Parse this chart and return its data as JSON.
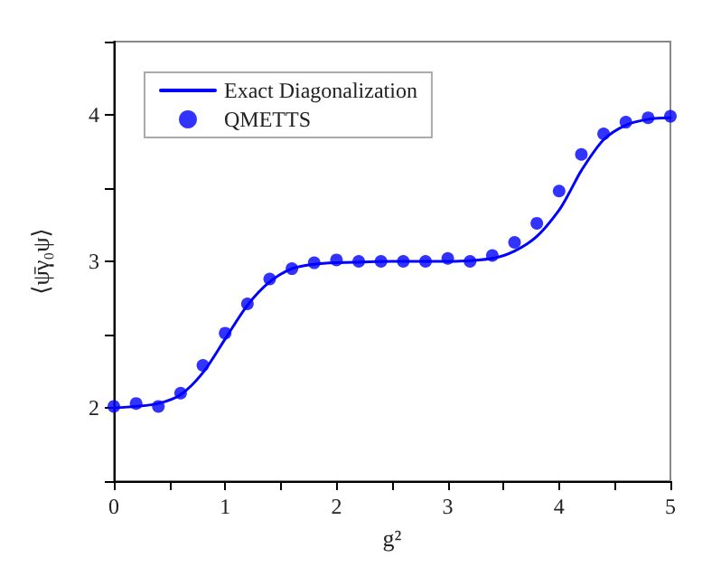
{
  "chart_data": {
    "type": "line",
    "xlabel": "g²",
    "ylabel": "⟨ψ̄γ₀ψ⟩",
    "xlim": [
      0,
      5
    ],
    "ylim": [
      1.5,
      4.5
    ],
    "xticks": [
      0,
      {
        "value": 0.5,
        "label": null
      },
      1,
      {
        "value": 1.5,
        "label": null
      },
      2,
      {
        "value": 2.5,
        "label": null
      },
      3,
      {
        "value": 3.5,
        "label": null
      },
      4,
      {
        "value": 4.5,
        "label": null
      },
      5
    ],
    "yticks": [
      {
        "value": 1.5,
        "label": null
      },
      2,
      {
        "value": 2.5,
        "label": null
      },
      3,
      {
        "value": 3.5,
        "label": null
      },
      4,
      {
        "value": 4.5,
        "label": null
      }
    ],
    "grid": false,
    "legend": "top left",
    "series": [
      {
        "name": "Exact Diagonalization",
        "color": "#0000ff",
        "marker": "none",
        "line_style": "solid",
        "x": [
          0,
          0.2,
          0.4,
          0.6,
          0.8,
          1.0,
          1.2,
          1.4,
          1.6,
          1.8,
          2.0,
          2.5,
          3.0,
          3.4,
          3.6,
          3.8,
          4.0,
          4.1,
          4.2,
          4.4,
          4.6,
          4.8,
          5.0
        ],
        "values": [
          2.0,
          2.01,
          2.03,
          2.09,
          2.24,
          2.47,
          2.7,
          2.86,
          2.95,
          2.98,
          2.99,
          3.0,
          3.0,
          3.02,
          3.07,
          3.17,
          3.35,
          3.48,
          3.62,
          3.83,
          3.93,
          3.97,
          3.98
        ]
      },
      {
        "name": "QMETTS",
        "type": "scatter",
        "color": "#0000ff",
        "marker": "circle",
        "x": [
          0,
          0.2,
          0.4,
          0.6,
          0.8,
          1.0,
          1.2,
          1.4,
          1.6,
          1.8,
          2.0,
          2.2,
          2.4,
          2.6,
          2.8,
          3.0,
          3.2,
          3.4,
          3.6,
          3.8,
          4.0,
          4.2,
          4.4,
          4.6,
          4.8,
          5.0
        ],
        "values": [
          2.01,
          2.03,
          2.01,
          2.1,
          2.29,
          2.51,
          2.71,
          2.88,
          2.95,
          2.99,
          3.01,
          3.0,
          3.0,
          3.0,
          3.0,
          3.02,
          3.0,
          3.04,
          3.13,
          3.26,
          3.48,
          3.73,
          3.87,
          3.95,
          3.98,
          3.99
        ]
      }
    ]
  }
}
